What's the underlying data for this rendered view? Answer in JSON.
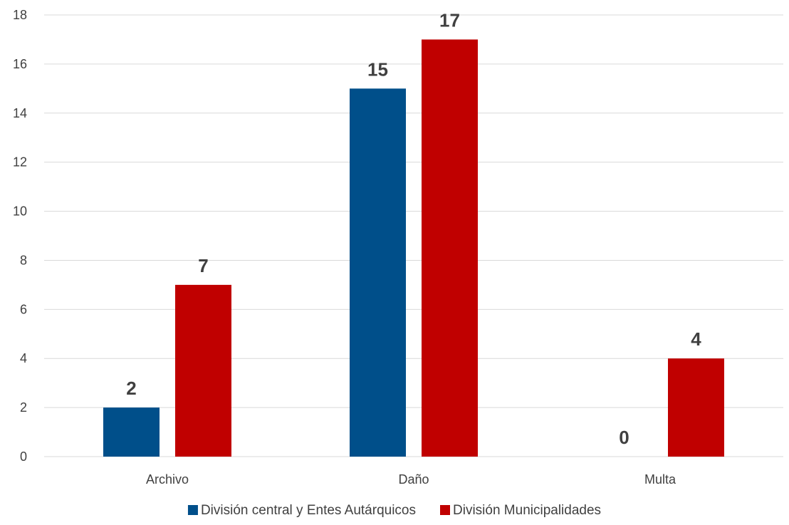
{
  "chart_data": {
    "type": "bar",
    "title": "",
    "xlabel": "",
    "ylabel": "",
    "categories": [
      "Archivo",
      "Daño",
      "Multa"
    ],
    "series": [
      {
        "name": "División central y Entes Autárquicos",
        "color": "#004F8A",
        "values": [
          2,
          15,
          0
        ]
      },
      {
        "name": "División Municipalidades",
        "color": "#C00000",
        "values": [
          7,
          17,
          4
        ]
      }
    ],
    "ylim": [
      0,
      18
    ],
    "yticks": [
      0,
      2,
      4,
      6,
      8,
      10,
      12,
      14,
      16,
      18
    ],
    "grid": true,
    "legend": "bottom"
  }
}
